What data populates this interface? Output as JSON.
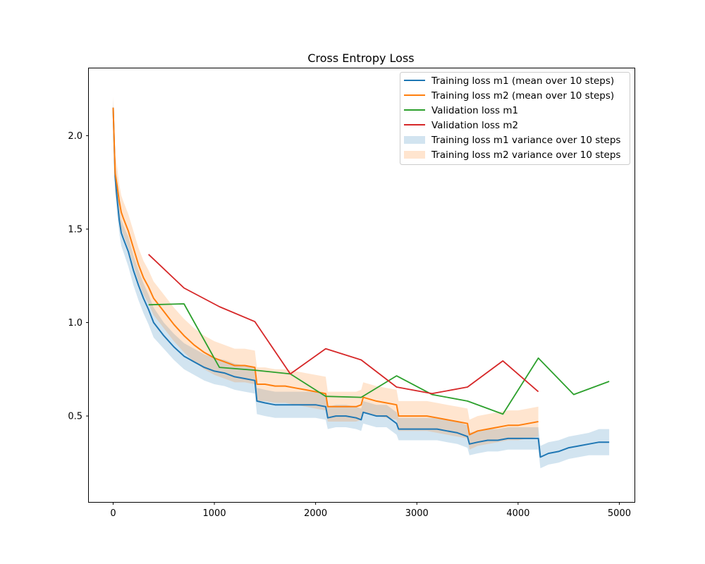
{
  "chart_data": {
    "type": "line",
    "title": "Cross Entropy Loss",
    "xlabel": "",
    "ylabel": "",
    "xlim": [
      -240,
      5150
    ],
    "ylim": [
      0.04,
      2.36
    ],
    "xticks": [
      0,
      1000,
      2000,
      3000,
      4000,
      5000
    ],
    "xtick_labels": [
      "0",
      "1000",
      "2000",
      "3000",
      "4000",
      "5000"
    ],
    "yticks": [
      0.5,
      1.0,
      1.5,
      2.0
    ],
    "ytick_labels": [
      "0.5",
      "1.0",
      "1.5",
      "2.0"
    ],
    "grid": false,
    "legend_position": "top-right",
    "training_series": [
      {
        "name": "Training loss m1 (mean over 10 steps)",
        "color": "#1f77b4",
        "band_name": "Training loss m1 variance over 10 steps",
        "band_color": "#1f77b4",
        "band_opacity": 0.2,
        "x": [
          0,
          20,
          40,
          60,
          80,
          100,
          150,
          200,
          250,
          300,
          350,
          400,
          500,
          600,
          700,
          800,
          900,
          1000,
          1100,
          1200,
          1300,
          1400,
          1420,
          1500,
          1600,
          1700,
          1800,
          1900,
          2000,
          2100,
          2120,
          2200,
          2300,
          2400,
          2450,
          2470,
          2600,
          2700,
          2800,
          2820,
          2900,
          3000,
          3100,
          3200,
          3300,
          3400,
          3500,
          3520,
          3600,
          3700,
          3800,
          3900,
          4000,
          4100,
          4200,
          4220,
          4300,
          4400,
          4500,
          4600,
          4700,
          4800,
          4900
        ],
        "y": [
          2.15,
          1.78,
          1.66,
          1.55,
          1.48,
          1.45,
          1.38,
          1.28,
          1.2,
          1.13,
          1.07,
          1.0,
          0.93,
          0.87,
          0.82,
          0.79,
          0.76,
          0.74,
          0.73,
          0.71,
          0.7,
          0.69,
          0.58,
          0.57,
          0.56,
          0.56,
          0.56,
          0.56,
          0.56,
          0.55,
          0.49,
          0.5,
          0.5,
          0.49,
          0.48,
          0.52,
          0.5,
          0.5,
          0.46,
          0.43,
          0.43,
          0.43,
          0.43,
          0.43,
          0.42,
          0.41,
          0.39,
          0.35,
          0.36,
          0.37,
          0.37,
          0.38,
          0.38,
          0.38,
          0.38,
          0.28,
          0.3,
          0.31,
          0.33,
          0.34,
          0.35,
          0.36,
          0.36
        ],
        "band": [
          0.05,
          0.08,
          0.08,
          0.07,
          0.07,
          0.07,
          0.08,
          0.08,
          0.08,
          0.08,
          0.08,
          0.08,
          0.07,
          0.07,
          0.07,
          0.07,
          0.07,
          0.07,
          0.07,
          0.07,
          0.07,
          0.07,
          0.07,
          0.07,
          0.07,
          0.07,
          0.07,
          0.07,
          0.07,
          0.07,
          0.06,
          0.06,
          0.06,
          0.06,
          0.06,
          0.06,
          0.06,
          0.06,
          0.06,
          0.06,
          0.06,
          0.06,
          0.06,
          0.06,
          0.06,
          0.06,
          0.06,
          0.06,
          0.06,
          0.06,
          0.06,
          0.06,
          0.06,
          0.06,
          0.06,
          0.06,
          0.06,
          0.06,
          0.06,
          0.06,
          0.06,
          0.07,
          0.07
        ]
      },
      {
        "name": "Training loss m2 (mean over 10 steps)",
        "color": "#ff7f0e",
        "band_name": "Training loss m2 variance over 10 steps",
        "band_color": "#ff7f0e",
        "band_opacity": 0.2,
        "x": [
          0,
          20,
          40,
          60,
          80,
          100,
          150,
          200,
          250,
          300,
          350,
          400,
          500,
          600,
          700,
          800,
          900,
          1000,
          1100,
          1200,
          1300,
          1400,
          1420,
          1500,
          1600,
          1700,
          1800,
          1900,
          2000,
          2100,
          2120,
          2200,
          2300,
          2400,
          2450,
          2470,
          2600,
          2700,
          2800,
          2820,
          2900,
          3000,
          3100,
          3200,
          3300,
          3400,
          3500,
          3520,
          3600,
          3700,
          3800,
          3900,
          4000,
          4100,
          4200
        ],
        "y": [
          2.15,
          1.8,
          1.73,
          1.65,
          1.59,
          1.56,
          1.49,
          1.4,
          1.31,
          1.24,
          1.19,
          1.13,
          1.06,
          0.99,
          0.93,
          0.88,
          0.84,
          0.81,
          0.79,
          0.77,
          0.77,
          0.76,
          0.67,
          0.67,
          0.66,
          0.66,
          0.65,
          0.64,
          0.63,
          0.62,
          0.55,
          0.55,
          0.55,
          0.55,
          0.56,
          0.6,
          0.58,
          0.57,
          0.56,
          0.5,
          0.5,
          0.5,
          0.5,
          0.49,
          0.48,
          0.47,
          0.46,
          0.4,
          0.42,
          0.43,
          0.44,
          0.45,
          0.45,
          0.46,
          0.47
        ],
        "band": [
          0.06,
          0.1,
          0.1,
          0.09,
          0.09,
          0.09,
          0.09,
          0.09,
          0.09,
          0.09,
          0.09,
          0.09,
          0.09,
          0.09,
          0.09,
          0.09,
          0.09,
          0.09,
          0.09,
          0.09,
          0.09,
          0.09,
          0.09,
          0.09,
          0.09,
          0.09,
          0.09,
          0.09,
          0.09,
          0.09,
          0.08,
          0.08,
          0.08,
          0.08,
          0.08,
          0.08,
          0.08,
          0.08,
          0.08,
          0.08,
          0.08,
          0.08,
          0.08,
          0.08,
          0.08,
          0.08,
          0.08,
          0.08,
          0.08,
          0.08,
          0.08,
          0.08,
          0.08,
          0.08,
          0.08
        ]
      }
    ],
    "validation_series": [
      {
        "name": "Validation loss m1",
        "color": "#2ca02c",
        "x": [
          350,
          700,
          1050,
          1400,
          1750,
          2100,
          2450,
          2800,
          3150,
          3500,
          3850,
          4200,
          4550,
          4900
        ],
        "y": [
          1.095,
          1.1,
          0.76,
          0.745,
          0.725,
          0.605,
          0.6,
          0.715,
          0.615,
          0.58,
          0.51,
          0.81,
          0.615,
          0.685
        ]
      },
      {
        "name": "Validation loss m2",
        "color": "#d62728",
        "x": [
          350,
          700,
          1050,
          1400,
          1750,
          2100,
          2450,
          2800,
          3150,
          3500,
          3850,
          4200
        ],
        "y": [
          1.365,
          1.185,
          1.085,
          1.005,
          0.725,
          0.86,
          0.8,
          0.655,
          0.62,
          0.655,
          0.795,
          0.63
        ]
      }
    ]
  }
}
